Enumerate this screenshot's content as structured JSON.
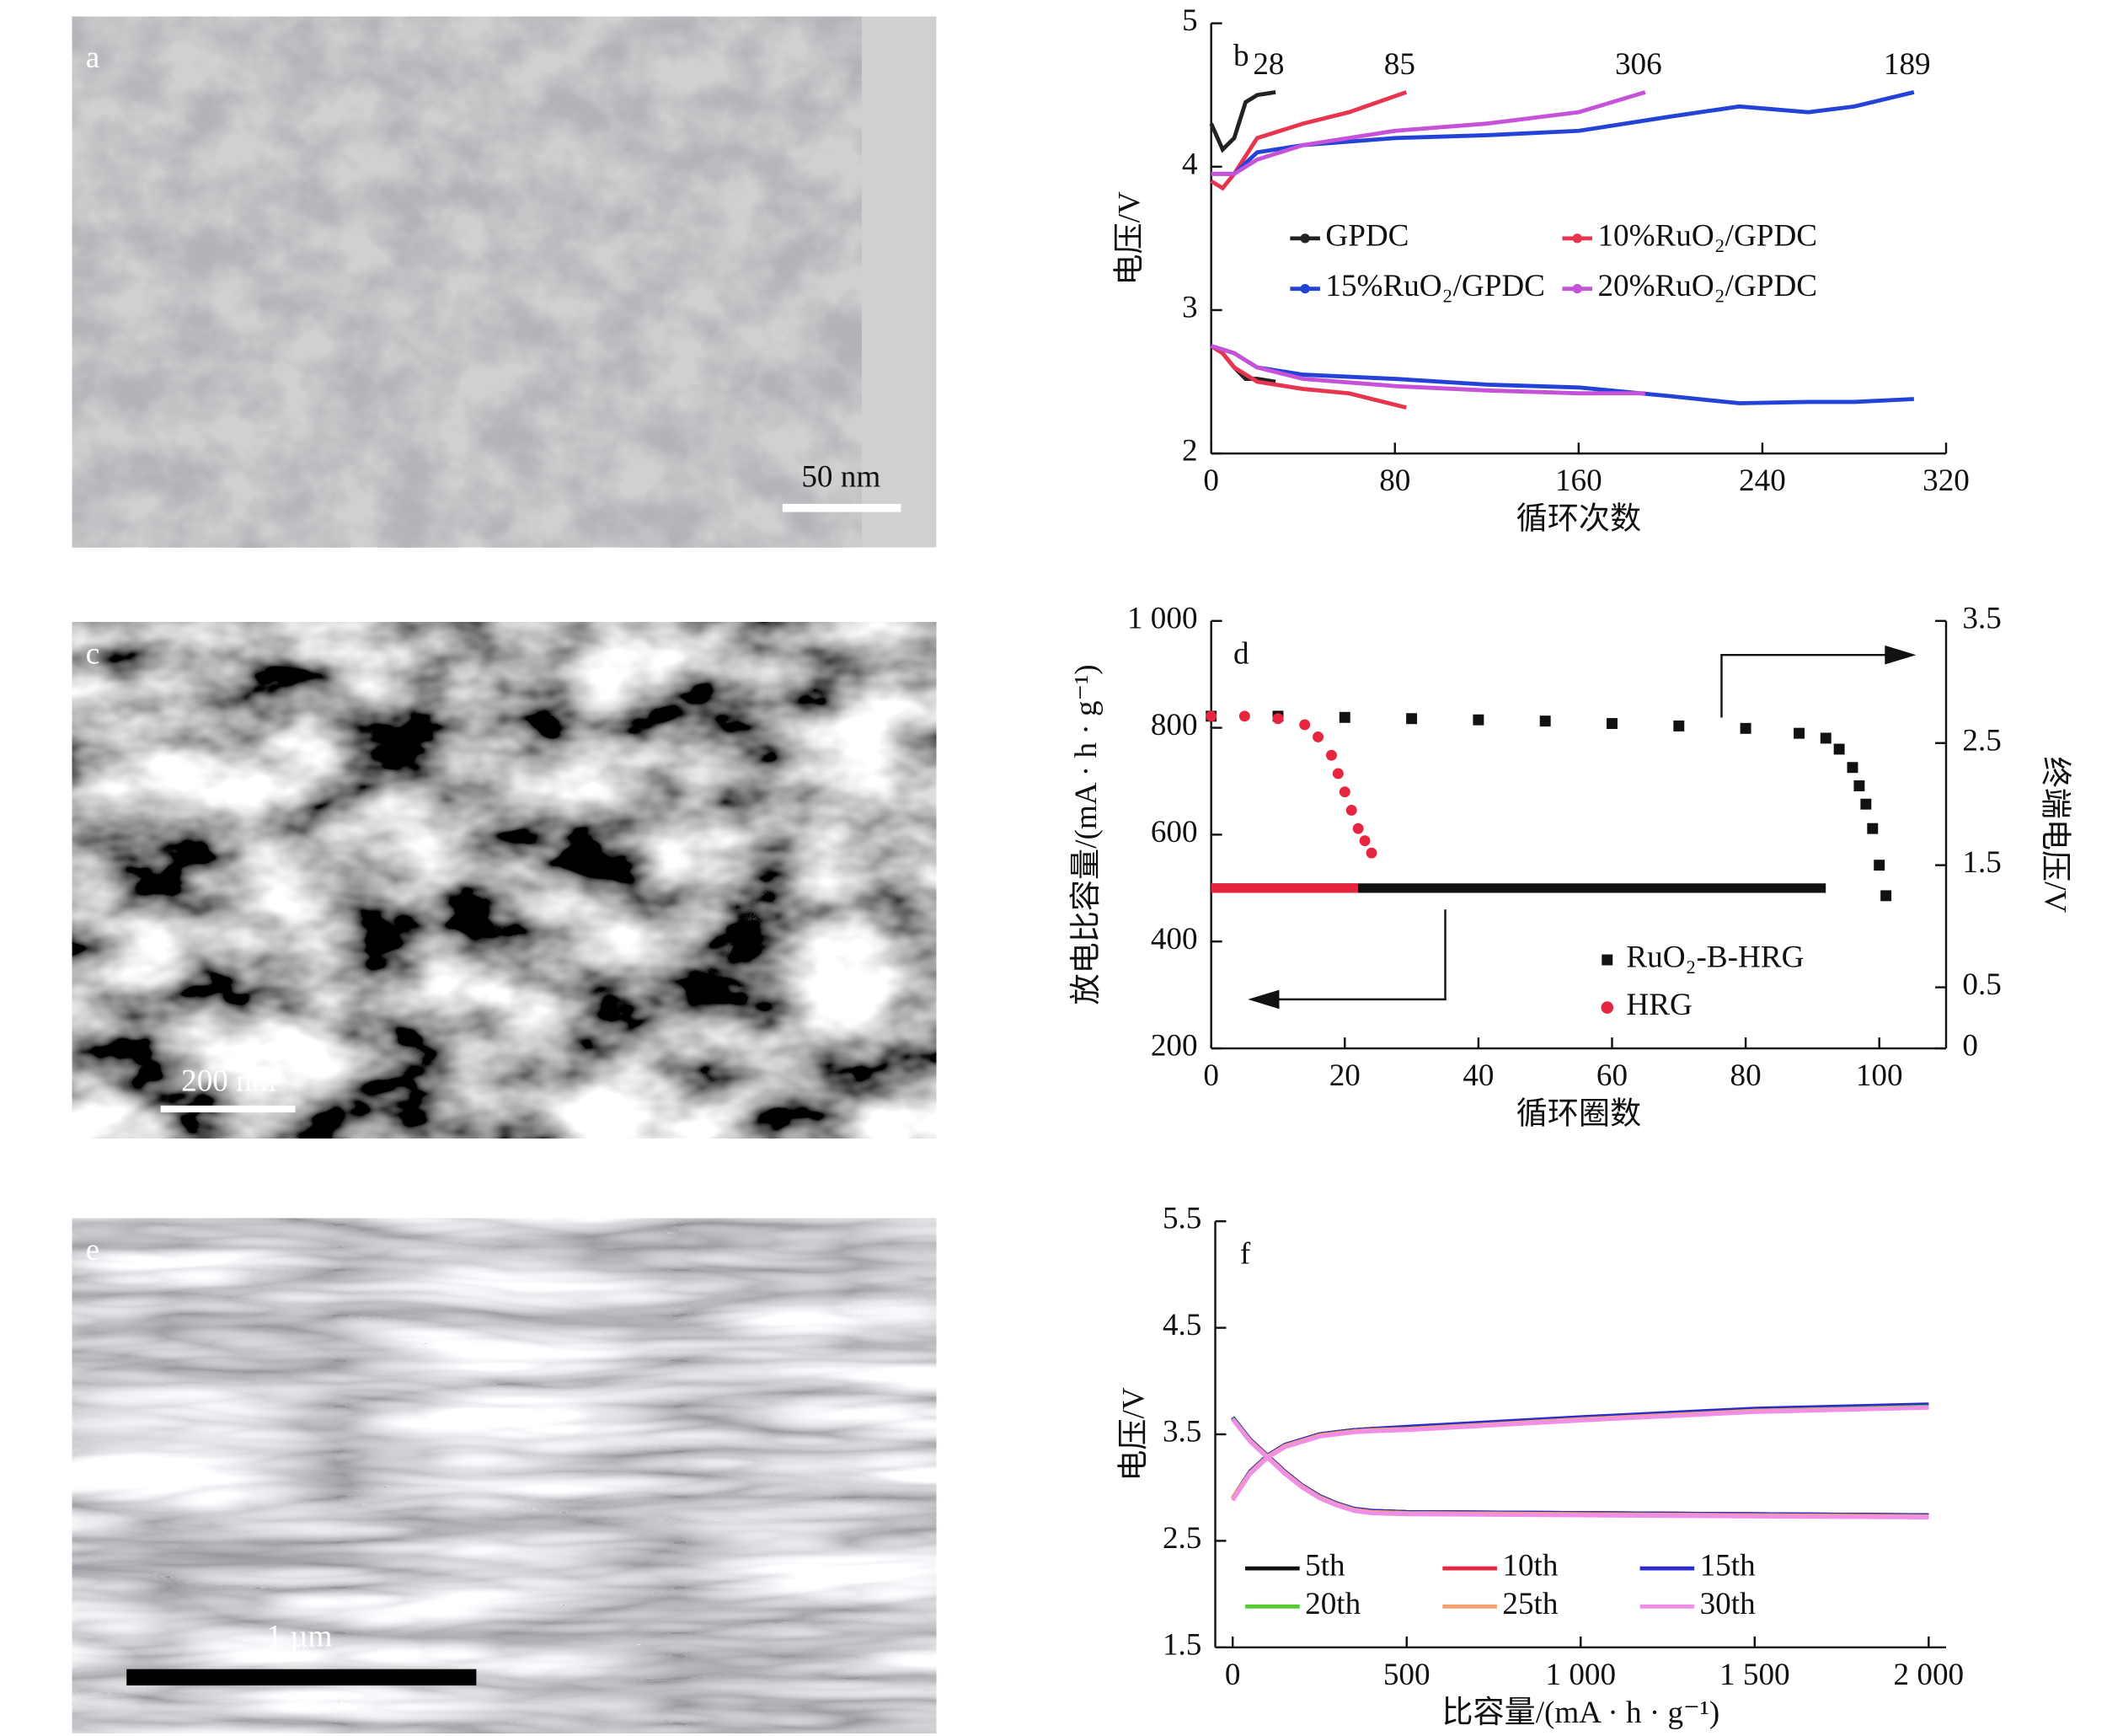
{
  "panels": [
    {
      "label": "a",
      "scale_bar": "50 nm"
    },
    {
      "label": "c",
      "scale_bar": "200 nm"
    },
    {
      "label": "e",
      "scale_bar": "1 µm"
    }
  ],
  "chart_data": [
    {
      "type": "line",
      "label": "b",
      "x_label": "循环次数",
      "y_label": "电压/V",
      "xlim": [
        0,
        320
      ],
      "xticks": [
        0,
        80,
        160,
        240,
        320
      ],
      "ylim": [
        2,
        5
      ],
      "yticks": [
        2,
        3,
        4,
        5
      ],
      "annotations": [
        "28",
        "85",
        "189",
        "306"
      ],
      "series": [
        {
          "name": "GPDC",
          "color": "#222222",
          "x": [
            0,
            5,
            10,
            15,
            20,
            28
          ],
          "values": [
            4.3,
            4.12,
            4.2,
            4.45,
            4.5,
            4.52
          ],
          "discharge": [
            2.75,
            2.7,
            2.6,
            2.52,
            2.52,
            2.5
          ]
        },
        {
          "name": "10%RuO₂/GPDC",
          "color": "#e8344e",
          "x": [
            0,
            5,
            10,
            20,
            40,
            60,
            85
          ],
          "values": [
            3.9,
            3.85,
            3.95,
            4.2,
            4.3,
            4.38,
            4.52
          ],
          "discharge": [
            2.75,
            2.7,
            2.6,
            2.5,
            2.45,
            2.42,
            2.32
          ]
        },
        {
          "name": "15%RuO₂/GPDC",
          "color": "#2342d8",
          "x": [
            0,
            10,
            20,
            40,
            80,
            120,
            160,
            200,
            230,
            260,
            280,
            306
          ],
          "values": [
            3.95,
            3.95,
            4.1,
            4.15,
            4.2,
            4.22,
            4.25,
            4.35,
            4.42,
            4.38,
            4.42,
            4.52
          ],
          "discharge": [
            2.75,
            2.7,
            2.6,
            2.55,
            2.52,
            2.48,
            2.46,
            2.4,
            2.35,
            2.36,
            2.36,
            2.38
          ]
        },
        {
          "name": "20%RuO₂/GPDC",
          "color": "#c552d8",
          "x": [
            0,
            10,
            20,
            40,
            80,
            120,
            160,
            189
          ],
          "values": [
            3.95,
            3.95,
            4.05,
            4.15,
            4.25,
            4.3,
            4.38,
            4.52
          ],
          "discharge": [
            2.75,
            2.7,
            2.6,
            2.52,
            2.47,
            2.44,
            2.42,
            2.42
          ]
        }
      ]
    },
    {
      "type": "dual_axis",
      "label": "d",
      "x_label": "循环圈数",
      "y_label": "放电比容量/(mA · h · g⁻¹)",
      "y2_label": "终端电压/V",
      "xlim": [
        0,
        110
      ],
      "xticks": [
        0,
        20,
        40,
        60,
        80,
        100
      ],
      "ylim": [
        200,
        1000
      ],
      "yticks": [
        200,
        400,
        600,
        800,
        {
          "value": 1000,
          "label": "1 000"
        }
      ],
      "y2lim": [
        0,
        3.5
      ],
      "y2ticks": [
        0,
        0.5,
        1.5,
        2.5,
        3.5
      ],
      "series": [
        {
          "name": "RuO₂-B-HRG",
          "color": "#111111",
          "x": [
            0,
            10,
            20,
            30,
            40,
            50,
            60,
            70,
            80,
            88,
            92,
            94,
            96,
            97,
            98,
            99,
            100,
            101
          ],
          "values": [
            500,
            500,
            500,
            500,
            500,
            500,
            500,
            500,
            500,
            500,
            500,
            null,
            null,
            null,
            null,
            null,
            null,
            null
          ],
          "voltage": [
            2.72,
            2.72,
            2.71,
            2.7,
            2.69,
            2.68,
            2.66,
            2.64,
            2.62,
            2.58,
            2.54,
            2.45,
            2.3,
            2.15,
            2.0,
            1.8,
            1.5,
            1.25
          ]
        },
        {
          "name": "HRG",
          "color": "#e8253f",
          "x": [
            0,
            5,
            10,
            14,
            16,
            18,
            19,
            20,
            21,
            22,
            23,
            24
          ],
          "values": [
            500,
            500,
            500,
            500,
            500,
            500,
            500,
            500,
            500,
            500,
            null,
            null
          ],
          "voltage": [
            2.72,
            2.72,
            2.7,
            2.65,
            2.55,
            2.4,
            2.25,
            2.1,
            1.95,
            1.8,
            1.7,
            1.6
          ]
        }
      ]
    },
    {
      "type": "line",
      "label": "f",
      "x_label": "比容量/(mA · h · g⁻¹)",
      "y_label": "电压/V",
      "xlim": [
        -50,
        2050
      ],
      "xticks": [
        0,
        500,
        {
          "value": 1000,
          "label": "1 000"
        },
        {
          "value": 1500,
          "label": "1 500"
        },
        {
          "value": 2000,
          "label": "2 000"
        }
      ],
      "ylim": [
        1.5,
        5.5
      ],
      "yticks": [
        1.5,
        2.5,
        3.5,
        4.5,
        5.5
      ],
      "x": [
        0,
        50,
        100,
        150,
        200,
        250,
        300,
        350,
        400,
        500,
        1000,
        1500,
        2000
      ],
      "series": [
        {
          "name": "5th",
          "color": "#111111",
          "values": [
            2.9,
            3.15,
            3.3,
            3.4,
            3.45,
            3.5,
            3.52,
            3.54,
            3.55,
            3.56,
            3.65,
            3.73,
            3.77
          ],
          "discharge": [
            3.65,
            3.45,
            3.3,
            3.15,
            3.02,
            2.92,
            2.85,
            2.8,
            2.78,
            2.77,
            2.76,
            2.75,
            2.74
          ]
        },
        {
          "name": "10th",
          "color": "#e8253f",
          "values": [
            2.9,
            3.15,
            3.3,
            3.4,
            3.45,
            3.5,
            3.52,
            3.54,
            3.55,
            3.56,
            3.65,
            3.73,
            3.77
          ],
          "discharge": [
            3.65,
            3.45,
            3.3,
            3.15,
            3.02,
            2.92,
            2.85,
            2.8,
            2.78,
            2.77,
            2.76,
            2.75,
            2.74
          ]
        },
        {
          "name": "15th",
          "color": "#2b2bd0",
          "values": [
            2.9,
            3.15,
            3.3,
            3.4,
            3.45,
            3.5,
            3.52,
            3.54,
            3.55,
            3.57,
            3.66,
            3.74,
            3.78
          ],
          "discharge": [
            3.66,
            3.45,
            3.3,
            3.15,
            3.02,
            2.92,
            2.85,
            2.8,
            2.78,
            2.77,
            2.76,
            2.75,
            2.74
          ]
        },
        {
          "name": "20th",
          "color": "#55cc33",
          "values": [
            2.9,
            3.14,
            3.29,
            3.39,
            3.44,
            3.49,
            3.51,
            3.53,
            3.54,
            3.55,
            3.64,
            3.72,
            3.76
          ],
          "discharge": [
            3.65,
            3.44,
            3.29,
            3.14,
            3.01,
            2.91,
            2.84,
            2.79,
            2.77,
            2.76,
            2.75,
            2.74,
            2.73
          ]
        },
        {
          "name": "25th",
          "color": "#f4a070",
          "values": [
            2.9,
            3.14,
            3.29,
            3.39,
            3.44,
            3.49,
            3.51,
            3.53,
            3.54,
            3.55,
            3.64,
            3.72,
            3.75
          ],
          "discharge": [
            3.64,
            3.44,
            3.29,
            3.14,
            3.01,
            2.91,
            2.84,
            2.79,
            2.77,
            2.76,
            2.75,
            2.74,
            2.73
          ]
        },
        {
          "name": "30th",
          "color": "#f08ee8",
          "values": [
            2.88,
            3.13,
            3.28,
            3.38,
            3.43,
            3.48,
            3.5,
            3.52,
            3.53,
            3.54,
            3.63,
            3.71,
            3.75
          ],
          "discharge": [
            3.64,
            3.43,
            3.28,
            3.13,
            3.0,
            2.9,
            2.83,
            2.78,
            2.76,
            2.75,
            2.74,
            2.73,
            2.72
          ]
        }
      ]
    }
  ]
}
